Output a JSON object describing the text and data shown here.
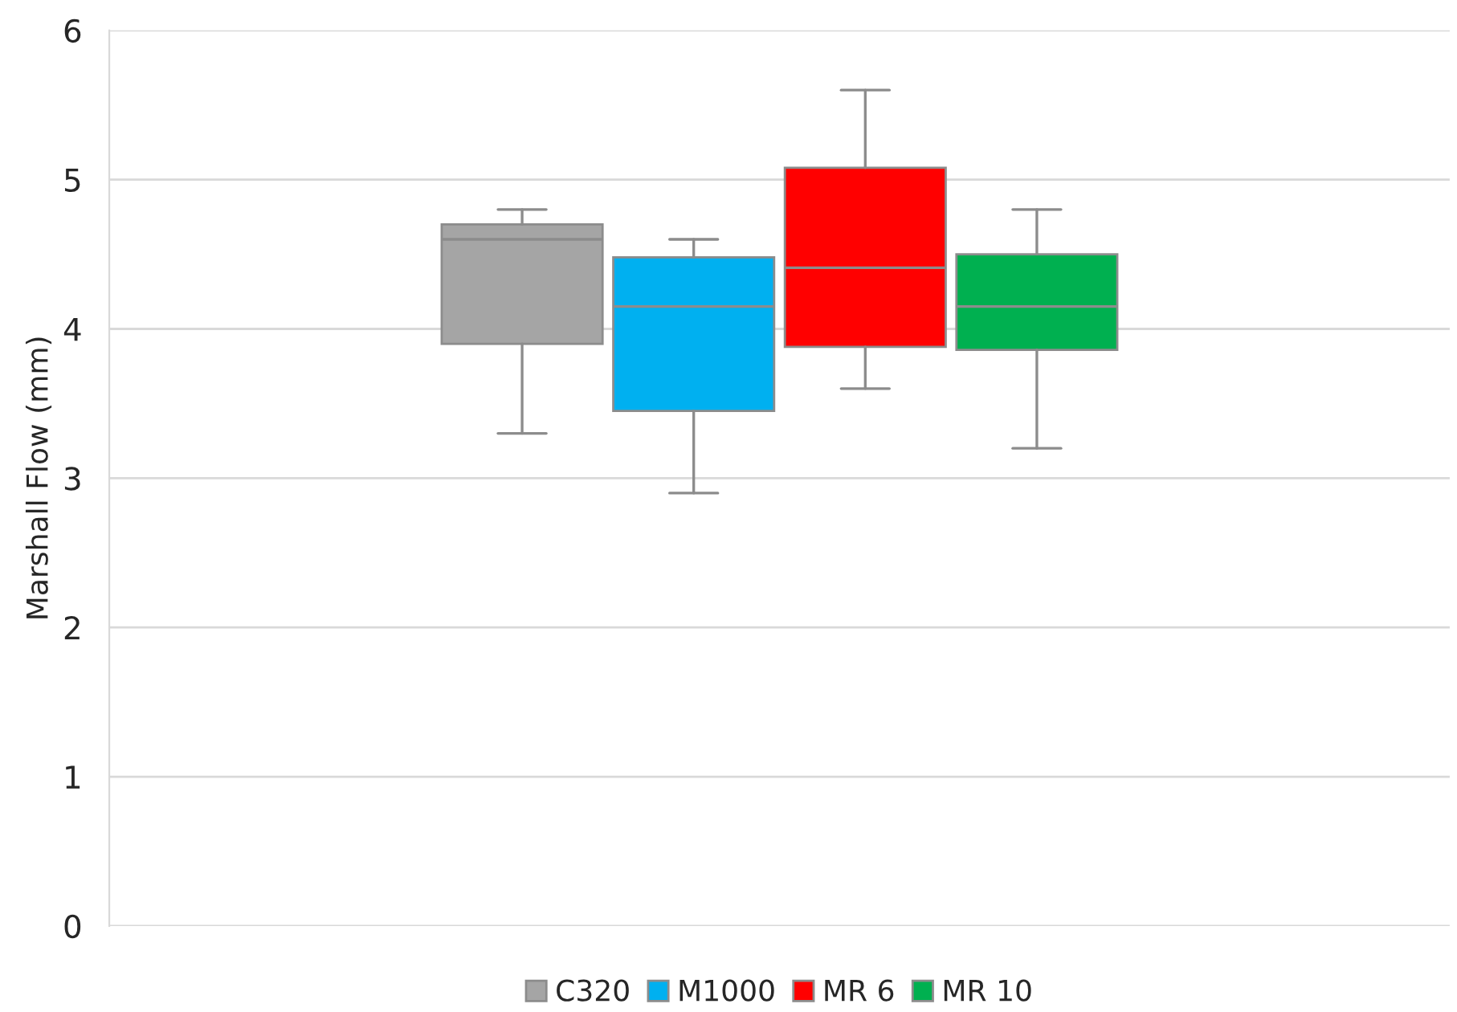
{
  "chart_data": {
    "type": "box",
    "ylabel": "Marshall Flow (mm)",
    "categories": [
      null
    ],
    "ylim": [
      0,
      6
    ],
    "yticks": [
      0,
      1,
      2,
      3,
      4,
      5,
      6
    ],
    "grid": "y",
    "legend": "bottom",
    "tick_labels": "y",
    "series": [
      {
        "name": "C320",
        "color": "#a5a5a5",
        "boxes": [
          {
            "low": 3.3,
            "q1": 3.9,
            "median": 4.6,
            "q3": 4.7,
            "high": 4.8
          }
        ]
      },
      {
        "name": "M1000",
        "color": "#00b0f0",
        "boxes": [
          {
            "low": 2.9,
            "q1": 3.45,
            "median": 4.15,
            "q3": 4.48,
            "high": 4.6
          }
        ]
      },
      {
        "name": "MR 6",
        "color": "#ff0000",
        "boxes": [
          {
            "low": 3.6,
            "q1": 3.88,
            "median": 4.41,
            "q3": 5.08,
            "high": 5.6
          }
        ]
      },
      {
        "name": "MR 10",
        "color": "#00b050",
        "boxes": [
          {
            "low": 3.2,
            "q1": 3.86,
            "median": 4.15,
            "q3": 4.5,
            "high": 4.8
          }
        ]
      }
    ]
  }
}
